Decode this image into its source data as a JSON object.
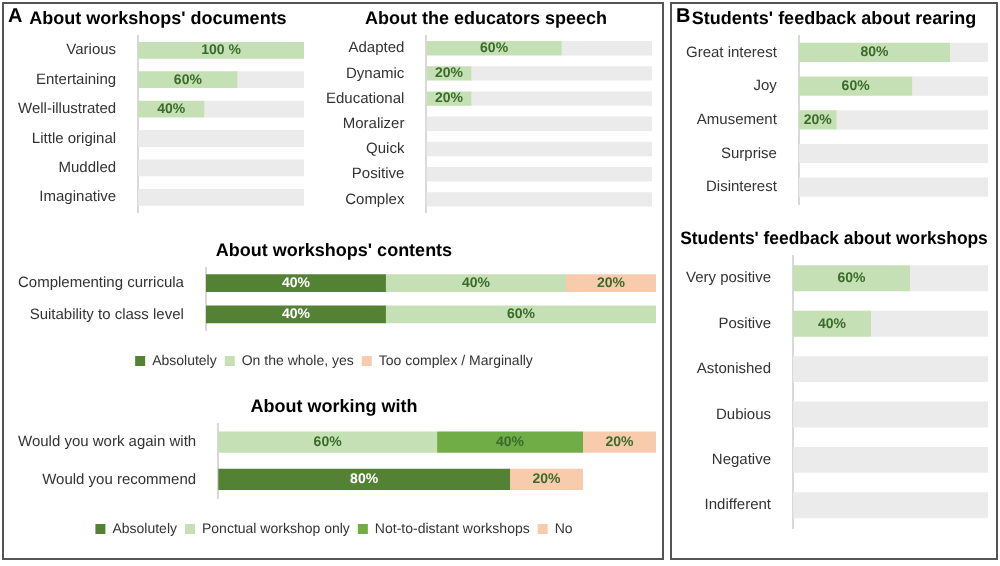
{
  "chart_data": [
    {
      "type": "bar",
      "title": "About workshops' documents",
      "annotations": [
        "A"
      ],
      "orientation": "horizontal",
      "stacked": true,
      "legend": false,
      "tick_labels": "y",
      "xlim": [
        0,
        100
      ],
      "categories": [
        "Various",
        "Entertaining",
        "Well-illustrated",
        "Little original",
        "Muddled",
        "Imaginative"
      ],
      "series": [
        {
          "color": "#c5e0b4",
          "values": [
            100,
            60,
            40,
            0,
            0,
            0
          ],
          "value_labels": [
            "100 %",
            "60%",
            "40%",
            null,
            null,
            null
          ]
        },
        {
          "color": "#ebebeb",
          "values": [
            0,
            40,
            60,
            100,
            100,
            100
          ]
        }
      ]
    },
    {
      "type": "bar",
      "title": "About the educators speech",
      "orientation": "horizontal",
      "stacked": true,
      "legend": false,
      "tick_labels": "y",
      "xlim": [
        0,
        100
      ],
      "categories": [
        "Adapted",
        "Dynamic",
        "Educational",
        "Moralizer",
        "Quick",
        "Positive",
        "Complex"
      ],
      "series": [
        {
          "color": "#c5e0b4",
          "values": [
            60,
            20,
            20,
            0,
            0,
            0,
            0
          ],
          "value_labels": [
            "60%",
            "20%",
            "20%",
            null,
            null,
            null,
            null
          ]
        },
        {
          "color": "#ebebeb",
          "values": [
            40,
            80,
            80,
            100,
            100,
            100,
            100
          ]
        }
      ]
    },
    {
      "type": "bar",
      "title": "About workshops' contents",
      "orientation": "horizontal",
      "stacked": true,
      "legend": "bottom",
      "tick_labels": "y",
      "xlim": [
        0,
        100
      ],
      "categories": [
        "Complementing curricula",
        "Suitability to class level"
      ],
      "series": [
        {
          "name": "Absolutely",
          "color": "#548235",
          "values": [
            40,
            40
          ],
          "value_labels": [
            "40%",
            "40%"
          ]
        },
        {
          "name": "On the whole, yes",
          "color": "#c5e0b4",
          "values": [
            40,
            60
          ],
          "value_labels": [
            "40%",
            "60%"
          ]
        },
        {
          "name": "Too complex / Marginally",
          "color": "#f8cbad",
          "values": [
            20,
            0
          ],
          "value_labels": [
            "20%",
            null
          ]
        }
      ]
    },
    {
      "type": "bar",
      "title": "About working with",
      "orientation": "horizontal",
      "stacked": true,
      "legend": "bottom",
      "tick_labels": "y",
      "xlim": [
        0,
        120
      ],
      "categories": [
        "Would you work again with",
        "Would you recommend"
      ],
      "series": [
        {
          "name": "Absolutely",
          "color": "#548235",
          "values": [
            0,
            80
          ],
          "value_labels": [
            null,
            "80%"
          ]
        },
        {
          "name": "Ponctual workshop only",
          "color": "#c5e0b4",
          "values": [
            60,
            0
          ],
          "value_labels": [
            "60%",
            null
          ]
        },
        {
          "name": "Not-to-distant workshops",
          "color": "#70ad47",
          "values": [
            40,
            0
          ],
          "value_labels": [
            "40%",
            null
          ]
        },
        {
          "name": "No",
          "color": "#f8cbad",
          "values": [
            20,
            20
          ],
          "value_labels": [
            "20%",
            "20%"
          ]
        }
      ]
    },
    {
      "type": "bar",
      "title": "Students' feedback about rearing",
      "annotations": [
        "B"
      ],
      "orientation": "horizontal",
      "stacked": true,
      "legend": false,
      "tick_labels": "y",
      "xlim": [
        0,
        100
      ],
      "categories": [
        "Great interest",
        "Joy",
        "Amusement",
        "Surprise",
        "Disinterest"
      ],
      "series": [
        {
          "color": "#c5e0b4",
          "values": [
            80,
            60,
            20,
            0,
            0
          ],
          "value_labels": [
            "80%",
            "60%",
            "20%",
            null,
            null
          ]
        },
        {
          "color": "#ebebeb",
          "values": [
            20,
            40,
            80,
            100,
            100
          ]
        }
      ]
    },
    {
      "type": "bar",
      "title": "Students' feedback about workshops",
      "orientation": "horizontal",
      "stacked": true,
      "legend": false,
      "tick_labels": "y",
      "xlim": [
        0,
        100
      ],
      "categories": [
        "Very positive",
        "Positive",
        "Astonished",
        "Dubious",
        "Negative",
        "Indifferent"
      ],
      "series": [
        {
          "color": "#c5e0b4",
          "values": [
            60,
            40,
            0,
            0,
            0,
            0
          ],
          "value_labels": [
            "60%",
            "40%",
            null,
            null,
            null,
            null
          ]
        },
        {
          "color": "#ebebeb",
          "values": [
            40,
            60,
            100,
            100,
            100,
            100
          ]
        }
      ]
    }
  ]
}
